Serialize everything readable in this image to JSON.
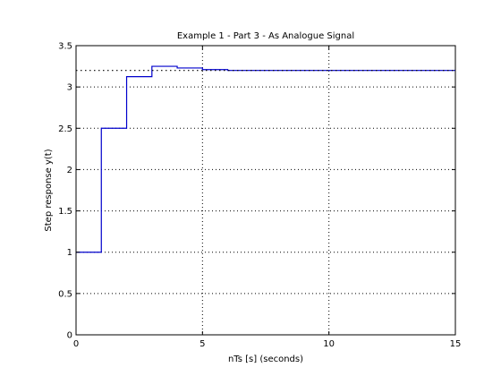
{
  "chart_data": {
    "type": "line",
    "title": "Example 1 - Part 3 - As Analogue Signal",
    "xlabel": "nTs [s] (seconds)",
    "ylabel": "Step response y(t)",
    "xlim": [
      0,
      15
    ],
    "ylim": [
      0,
      3.5
    ],
    "xticks": [
      0,
      5,
      10,
      15
    ],
    "xtick_labels": [
      "0",
      "5",
      "10",
      "15"
    ],
    "yticks": [
      0,
      0.5,
      1,
      1.5,
      2,
      2.5,
      3,
      3.5
    ],
    "ytick_labels": [
      "0",
      "0.5",
      "1",
      "1.5",
      "2",
      "2.5",
      "3",
      "3.5"
    ],
    "grid": true,
    "series": [
      {
        "style": "stairs",
        "color": "#0000cc",
        "x": [
          0,
          1,
          2,
          3,
          4,
          5,
          6,
          7,
          8,
          9,
          10,
          11,
          12,
          13,
          14,
          15
        ],
        "y": [
          1.0,
          2.5,
          3.125,
          3.25,
          3.23,
          3.21,
          3.2,
          3.2,
          3.2,
          3.2,
          3.2,
          3.2,
          3.2,
          3.2,
          3.2,
          3.2
        ]
      },
      {
        "style": "dotted",
        "color": "#000000",
        "x": [
          0,
          15
        ],
        "y": [
          3.2,
          3.2
        ]
      }
    ]
  }
}
